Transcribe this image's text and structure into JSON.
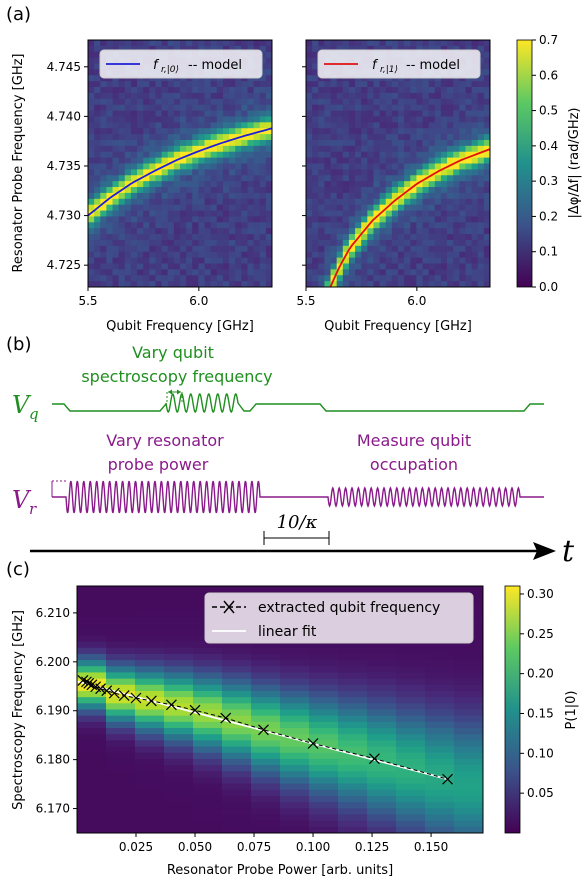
{
  "panels": {
    "a": "(a)",
    "b": "(b)",
    "c": "(c)"
  },
  "colors": {
    "model0": "#1f1fd6",
    "model1": "#e01010",
    "green": "#1f8f1f",
    "purple": "#8a1a8a",
    "fit": "#ffffff"
  },
  "chart_data": [
    {
      "id": "a-left",
      "type": "heatmap",
      "xlabel": "Qubit Frequency [GHz]",
      "ylabel": "Resonator Probe Frequency [GHz]",
      "xlim": [
        5.5,
        6.33
      ],
      "ylim": [
        4.7228,
        4.7477
      ],
      "xticks": [
        "5.5",
        "6.0"
      ],
      "yticks": [
        "4.725",
        "4.730",
        "4.735",
        "4.740",
        "4.745"
      ],
      "legend": "f_{r,|0⟩} -- model",
      "legend_text": "-- model",
      "legend_sym": "f",
      "legend_sub": "r,|0⟩",
      "model_curve": {
        "x": [
          5.5,
          5.6,
          5.7,
          5.8,
          5.9,
          6.0,
          6.1,
          6.2,
          6.33
        ],
        "y": [
          4.73,
          4.7318,
          4.7333,
          4.7345,
          4.7356,
          4.7365,
          4.7373,
          4.738,
          4.7388
        ]
      }
    },
    {
      "id": "a-right",
      "type": "heatmap",
      "xlabel": "Qubit Frequency [GHz]",
      "xlim": [
        5.5,
        6.33
      ],
      "ylim": [
        4.7228,
        4.7477
      ],
      "xticks": [
        "5.5",
        "6.0"
      ],
      "legend": "f_{r,|1⟩} -- model",
      "legend_text": "-- model",
      "legend_sym": "f",
      "legend_sub": "r,|1⟩",
      "colorbar": {
        "label": "|Δφ/Δf| (rad/GHz)",
        "range": [
          0.0,
          0.7
        ],
        "ticks": [
          "0.0",
          "0.1",
          "0.2",
          "0.3",
          "0.4",
          "0.5",
          "0.6",
          "0.7"
        ]
      },
      "model_curve": {
        "x": [
          5.61,
          5.65,
          5.7,
          5.8,
          5.9,
          6.0,
          6.1,
          6.2,
          6.33
        ],
        "y": [
          4.7228,
          4.7248,
          4.7268,
          4.7295,
          4.7315,
          4.7332,
          4.7345,
          4.7356,
          4.7367
        ]
      }
    },
    {
      "id": "c",
      "type": "heatmap",
      "xlabel": "Resonator Probe Power [arb. units]",
      "ylabel": "Spectroscopy Frequency [GHz]",
      "xlim": [
        0,
        0.172
      ],
      "ylim": [
        6.165,
        6.2155
      ],
      "xticks": [
        "0.025",
        "0.050",
        "0.075",
        "0.100",
        "0.125",
        "0.150"
      ],
      "yticks": [
        "6.170",
        "6.180",
        "6.190",
        "6.200",
        "6.210"
      ],
      "colorbar": {
        "label": "P(1|0)",
        "range": [
          0.0,
          0.31
        ],
        "ticks": [
          "0.05",
          "0.10",
          "0.15",
          "0.20",
          "0.25",
          "0.30"
        ]
      },
      "series": [
        {
          "name": "extracted qubit frequency",
          "x": [
            0.0025,
            0.004,
            0.005,
            0.0063,
            0.0079,
            0.01,
            0.0126,
            0.0158,
            0.02,
            0.025,
            0.0315,
            0.04,
            0.05,
            0.063,
            0.079,
            0.1,
            0.126,
            0.157
          ],
          "y": [
            6.1962,
            6.1959,
            6.1956,
            6.1953,
            6.1949,
            6.1945,
            6.1941,
            6.1936,
            6.1931,
            6.1926,
            6.192,
            6.1912,
            6.1901,
            6.1885,
            6.1861,
            6.1833,
            6.1802,
            6.176
          ]
        },
        {
          "name": "linear fit",
          "x": [
            0.0,
            0.157
          ],
          "y": [
            6.196,
            6.176
          ]
        }
      ]
    }
  ],
  "schematic": {
    "vq": "V",
    "vq_sub": "q",
    "vr": "V",
    "vr_sub": "r",
    "green_label_1": "Vary qubit",
    "green_label_2": "spectroscopy frequency",
    "purple_label_1": "Vary resonator",
    "purple_label_2": "probe power",
    "measure_label_1": "Measure qubit",
    "measure_label_2": "occupation",
    "interval": "10/κ",
    "time": "t"
  }
}
